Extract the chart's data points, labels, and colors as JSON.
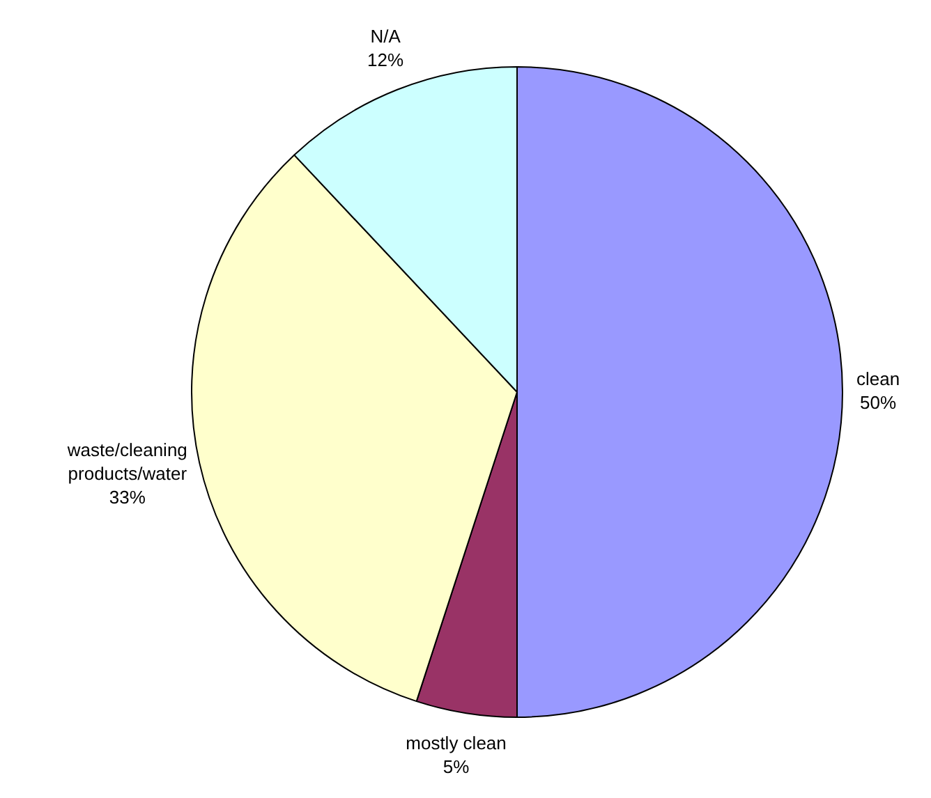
{
  "chart_data": {
    "type": "pie",
    "categories": [
      "clean",
      "mostly clean",
      "waste/cleaning products/water",
      "N/A"
    ],
    "values": [
      50,
      5,
      33,
      12
    ],
    "colors": [
      "#9999ff",
      "#993366",
      "#ffffcc",
      "#ccffff"
    ],
    "value_labels": [
      "50%",
      "5%",
      "33%",
      "12%"
    ]
  }
}
